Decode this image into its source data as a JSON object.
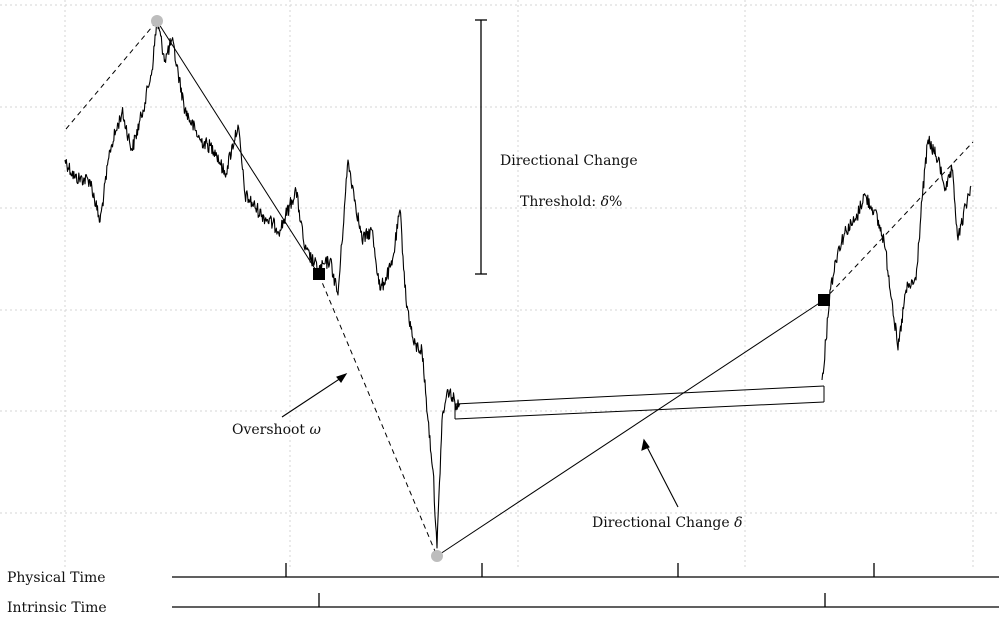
{
  "annotations": {
    "dc_threshold_line1": "Directional Change",
    "dc_threshold_line2_prefix": "Threshold: ",
    "dc_threshold_symbol": "δ",
    "dc_threshold_suffix": "%",
    "overshoot_prefix": "Overshoot ",
    "overshoot_symbol": "ω",
    "dc_prefix": "Directional Change ",
    "dc_symbol": "δ"
  },
  "axes": {
    "physical_time_label": "Physical Time",
    "intrinsic_time_label": "Intrinsic Time"
  },
  "colors": {
    "series": "#000000",
    "extreme_marker": "#bdbdbd",
    "dc_marker": "#000000",
    "grid": "#d6d6d6"
  }
}
